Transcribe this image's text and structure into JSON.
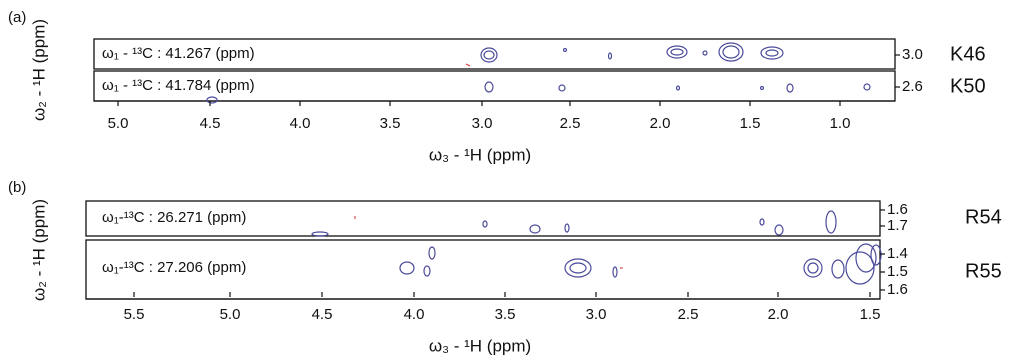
{
  "panels": [
    {
      "label": "(a)",
      "y_axis_label": "ω₂ - ¹H (ppm)",
      "x_axis_label": "ω₃ - ¹H (ppm)",
      "x_ticks": [
        "5.0",
        "4.5",
        "4.0",
        "3.5",
        "3.0",
        "2.5",
        "2.0",
        "1.5",
        "1.0"
      ],
      "strips": [
        {
          "title": "ω₁ - ¹³C : 41.267 (ppm)",
          "y_ticks": [
            "3.0"
          ],
          "residue": "K46"
        },
        {
          "title": "ω₁ - ¹³C : 41.784 (ppm)",
          "y_ticks": [
            "2.6"
          ],
          "residue": "K50"
        }
      ]
    },
    {
      "label": "(b)",
      "y_axis_label": "ω₂ - ¹H (ppm)",
      "x_axis_label": "ω₃ - ¹H (ppm)",
      "x_ticks": [
        "5.5",
        "5.0",
        "4.5",
        "4.0",
        "3.5",
        "3.0",
        "2.5",
        "2.0",
        "1.5"
      ],
      "strips": [
        {
          "title": "ω₁-¹³C : 26.271 (ppm)",
          "y_ticks": [
            "1.6",
            "1.7"
          ],
          "residue": "R54"
        },
        {
          "title": "ω₁-¹³C : 27.206 (ppm)",
          "y_ticks": [
            "1.4",
            "1.5",
            "1.6"
          ],
          "residue": "R55"
        }
      ]
    }
  ]
}
